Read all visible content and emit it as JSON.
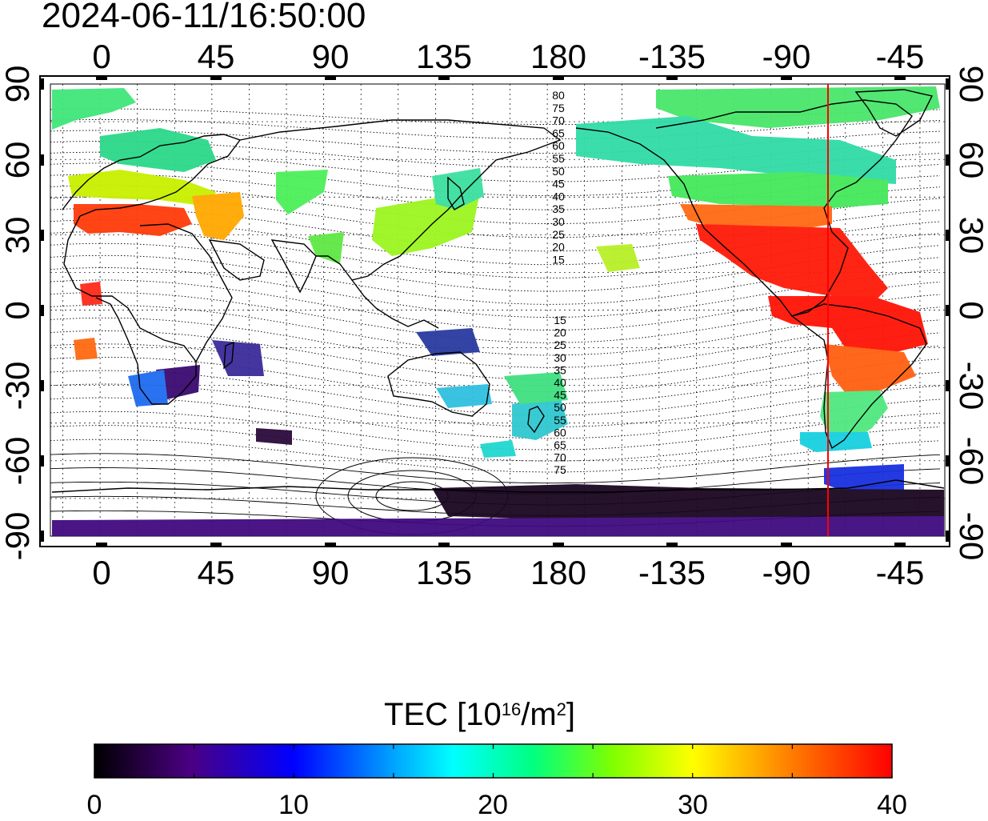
{
  "timestamp": "2024-06-11/16:50:00",
  "map": {
    "top_lon_labels": [
      "0",
      "45",
      "90",
      "135",
      "180",
      "-135",
      "-90",
      "-45"
    ],
    "bottom_lon_labels": [
      "0",
      "45",
      "90",
      "135",
      "180",
      "-135",
      "-90",
      "-45"
    ],
    "left_lat_labels": [
      "90",
      "60",
      "30",
      "0",
      "-30",
      "-60",
      "-90"
    ],
    "right_lat_labels": [
      "90",
      "60",
      "30",
      "0",
      "-30",
      "-60",
      "-90"
    ],
    "magnetic_lat_labels_north": [
      "80",
      "75",
      "70",
      "65",
      "60",
      "55",
      "50",
      "45",
      "40",
      "35",
      "30",
      "25",
      "20",
      "15"
    ],
    "magnetic_lat_labels_south": [
      "15",
      "20",
      "25",
      "30",
      "35",
      "40",
      "45",
      "50",
      "55",
      "60",
      "65",
      "70",
      "75"
    ],
    "terminator_color": "#ff0000"
  },
  "colorbar": {
    "title": "TEC  [10",
    "exp1": "16",
    "unit": "/m",
    "exp2": "2",
    "close": "]",
    "labels": [
      "0",
      "10",
      "20",
      "30",
      "40"
    ],
    "min": 0,
    "max": 40
  }
}
